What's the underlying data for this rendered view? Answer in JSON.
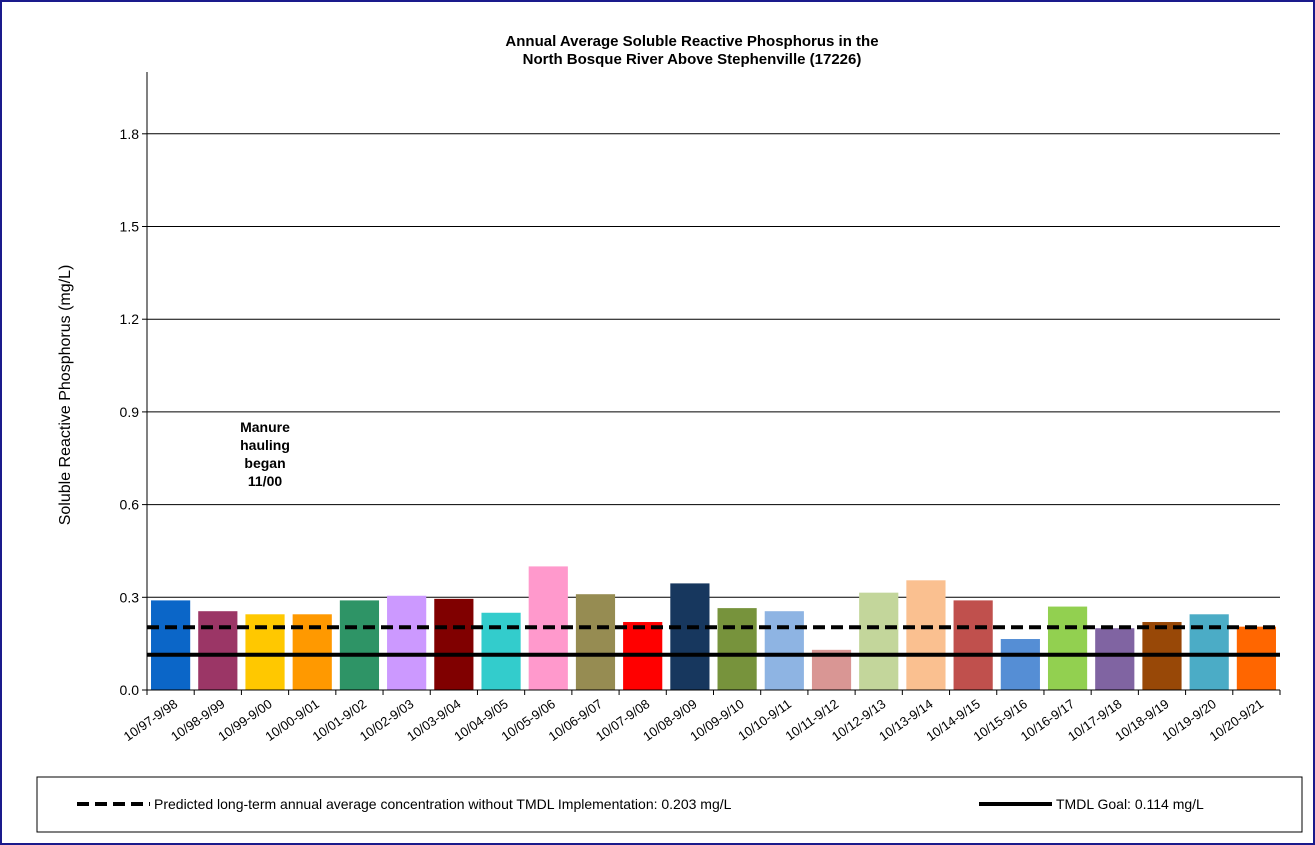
{
  "chart_data": {
    "type": "bar",
    "title_line1": "Annual Average Soluble Reactive Phosphorus in the",
    "title_line2": "North Bosque River Above Stephenville (17226)",
    "xlabel": "",
    "ylabel": "Soluble Reactive Phosphorus (mg/L)",
    "ylim": [
      0,
      2.0
    ],
    "yticks": [
      "0.0",
      "0.3",
      "0.6",
      "0.9",
      "1.2",
      "1.5",
      "1.8"
    ],
    "ytick_values": [
      0,
      0.3,
      0.6,
      0.9,
      1.2,
      1.5,
      1.8
    ],
    "grid": true,
    "categories": [
      "10/97-9/98",
      "10/98-9/99",
      "10/99-9/00",
      "10/00-9/01",
      "10/01-9/02",
      "10/02-9/03",
      "10/03-9/04",
      "10/04-9/05",
      "10/05-9/06",
      "10/06-9/07",
      "10/07-9/08",
      "10/08-9/09",
      "10/09-9/10",
      "10/10-9/11",
      "10/11-9/12",
      "10/12-9/13",
      "10/13-9/14",
      "10/14-9/15",
      "10/15-9/16",
      "10/16-9/17",
      "10/17-9/18",
      "10/18-9/19",
      "10/19-9/20",
      "10/20-9/21"
    ],
    "values": [
      0.29,
      0.255,
      0.245,
      0.245,
      0.29,
      0.305,
      0.295,
      0.25,
      0.4,
      0.31,
      0.22,
      0.345,
      0.265,
      0.255,
      0.13,
      0.315,
      0.355,
      0.29,
      0.165,
      0.27,
      0.2,
      0.22,
      0.245,
      0.205
    ],
    "colors": [
      "#0b66c8",
      "#9b3666",
      "#ffc800",
      "#ff9900",
      "#2e9466",
      "#cc99ff",
      "#800000",
      "#33cccc",
      "#ff99cc",
      "#968c52",
      "#ff0000",
      "#17375e",
      "#77933c",
      "#8eb4e3",
      "#d99694",
      "#c3d69b",
      "#fac090",
      "#c0504d",
      "#558ed5",
      "#92d050",
      "#8064a2",
      "#984807",
      "#4bacc6",
      "#ff6600"
    ],
    "reference_lines": [
      {
        "value": 0.203,
        "style": "dashed",
        "label": "Predicted long-term annual average concentration without TMDL Implementation: 0.203 mg/L"
      },
      {
        "value": 0.114,
        "style": "solid",
        "label": "TMDL Goal: 0.114 mg/L"
      }
    ],
    "annotation": {
      "lines": [
        "Manure",
        "hauling",
        "began",
        "11/00"
      ],
      "anchor_category": "10/99-9/00"
    },
    "legend_placement": "bottom"
  }
}
